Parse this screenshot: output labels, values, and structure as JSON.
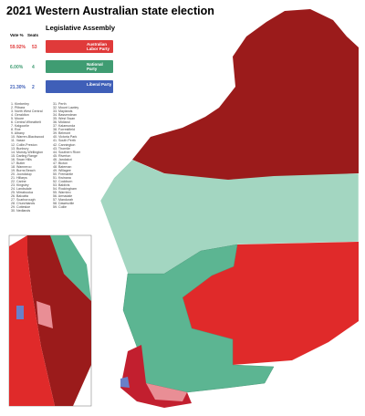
{
  "header": {
    "title": "2021 Western Australian state election"
  },
  "legend": {
    "title": "Legislative Assembly",
    "vote_label": "Vote %",
    "seats_label": "Seats",
    "parties": [
      {
        "name": "Australian Labor Party",
        "vote": "59.92%",
        "seats": "53",
        "color": "#e03a3a"
      },
      {
        "name": "National Party",
        "vote": "6.00%",
        "seats": "4",
        "color": "#3f9c72"
      },
      {
        "name": "Liberal Party",
        "vote": "21.30%",
        "seats": "2",
        "color": "#3f5fb8"
      }
    ]
  },
  "districts": {
    "left": [
      "1. Kimberley",
      "2. Pilbara",
      "3. North West Central",
      "4. Geraldton",
      "5. Moore",
      "6. Central Wheatbelt",
      "7. Kalgoorlie",
      "8. Roe",
      "9. Albany",
      "10. Warren-Blackwood",
      "11. Vasse",
      "12. Collie-Preston",
      "13. Bunbury",
      "14. Murray-Wellington",
      "15. Darling Range",
      "16. Swan Hills",
      "17. Butler",
      "18. Wanneroo",
      "19. Burns Beach",
      "20. Joondalup",
      "21. Hillarys",
      "22. Carine",
      "23. Kingsley",
      "24. Landsdale",
      "25. Mirrabooka",
      "26. Balcatta",
      "27. Scarborough",
      "28. Churchlands",
      "29. Cottesloe",
      "30. Nedlands"
    ],
    "right": [
      "31. Perth",
      "32. Mount Lawley",
      "33. Maylands",
      "34. Bassendean",
      "35. West Swan",
      "36. Midland",
      "37. Kalamunda",
      "38. Forrestfield",
      "39. Belmont",
      "40. Victoria Park",
      "41. South Perth",
      "42. Cannington",
      "43. Thornlie",
      "44. Southern River",
      "45. Riverton",
      "46. Jandakot",
      "47. Bicton",
      "48. Bateman",
      "49. Willagee",
      "50. Fremantle",
      "51. Kwinana",
      "52. Cockburn",
      "53. Baldivis",
      "54. Rockingham",
      "55. Warnbro",
      "56. Armadale",
      "57. Mandurah",
      "58. Dawesville",
      "59. Collie"
    ]
  }
}
